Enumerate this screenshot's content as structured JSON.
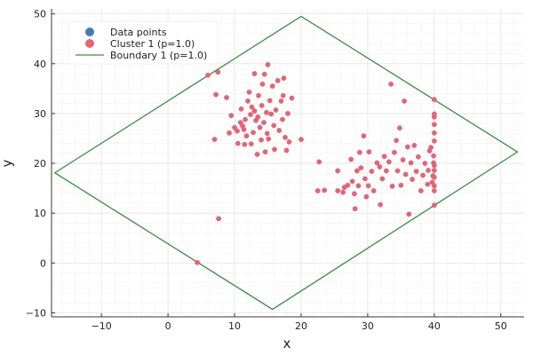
{
  "chart_data": {
    "type": "scatter",
    "xlabel": "x",
    "ylabel": "y",
    "xlim": [
      -17.5,
      53.5
    ],
    "ylim": [
      -10.8,
      51
    ],
    "xticks": [
      -10,
      0,
      10,
      20,
      30,
      40,
      50
    ],
    "yticks": [
      -10,
      0,
      10,
      20,
      30,
      40,
      50
    ],
    "grid": true,
    "legend_position": "top-left",
    "legend": [
      {
        "label": "Data points",
        "kind": "marker",
        "color": "#4a78b0"
      },
      {
        "label": "Cluster 1 (p=1.0)",
        "kind": "marker",
        "color": "#ea6275"
      },
      {
        "label": "Boundary 1 (p=1.0)",
        "kind": "line",
        "color": "#3a9040"
      }
    ],
    "boundary": {
      "name": "Boundary 1 (p=1.0)",
      "color": "#3a9040",
      "polygon": [
        [
          20,
          49.5
        ],
        [
          52.5,
          22.3
        ],
        [
          15.7,
          -9.3
        ],
        [
          -17,
          18.1
        ],
        [
          20,
          49.5
        ]
      ]
    },
    "series": [
      {
        "name": "Cluster 1 (p=1.0)",
        "color": "#ea6275",
        "points": [
          [
            6,
            37.7
          ],
          [
            7.5,
            38.3
          ],
          [
            7.2,
            33.8
          ],
          [
            7,
            24.8
          ],
          [
            7.6,
            8.9
          ],
          [
            4.4,
            0.1
          ],
          [
            8.8,
            33.2
          ],
          [
            9.5,
            29.6
          ],
          [
            10,
            27.2
          ],
          [
            10.4,
            26.5
          ],
          [
            10.5,
            24
          ],
          [
            10.9,
            28.2
          ],
          [
            11,
            30.9
          ],
          [
            11.2,
            27.5
          ],
          [
            11.4,
            26.8
          ],
          [
            11.6,
            28.8
          ],
          [
            11.8,
            25.5
          ],
          [
            12,
            32.5
          ],
          [
            12.2,
            34.3
          ],
          [
            12.4,
            29.8
          ],
          [
            12.5,
            23.9
          ],
          [
            12.6,
            31.3
          ],
          [
            12.8,
            26.2
          ],
          [
            13,
            30.5
          ],
          [
            13,
            38
          ],
          [
            13.2,
            28.6
          ],
          [
            13.4,
            21.8
          ],
          [
            13.5,
            29.3
          ],
          [
            13.6,
            33.6
          ],
          [
            13.8,
            27.2
          ],
          [
            14,
            24.7
          ],
          [
            14.1,
            31.6
          ],
          [
            14.2,
            35.9
          ],
          [
            14.4,
            28.2
          ],
          [
            14.5,
            37.9
          ],
          [
            14.6,
            22.3
          ],
          [
            14.8,
            30.2
          ],
          [
            14.9,
            26
          ],
          [
            15,
            39.8
          ],
          [
            15.1,
            24.9
          ],
          [
            15.3,
            32.6
          ],
          [
            15.5,
            29.9
          ],
          [
            15.7,
            35.5
          ],
          [
            15.9,
            27.6
          ],
          [
            16,
            22.8
          ],
          [
            16.2,
            30.7
          ],
          [
            16.5,
            36.6
          ],
          [
            16.7,
            26.6
          ],
          [
            17,
            32.5
          ],
          [
            17.2,
            28.8
          ],
          [
            17.4,
            37.1
          ],
          [
            17.6,
            25.2
          ],
          [
            17.8,
            22.6
          ],
          [
            18,
            30
          ],
          [
            18.2,
            24.3
          ],
          [
            18.6,
            33.1
          ],
          [
            20,
            24.8
          ],
          [
            9.2,
            26.1
          ],
          [
            11.5,
            23.8
          ],
          [
            17.3,
            33.6
          ],
          [
            22.7,
            20.3
          ],
          [
            22.5,
            14.5
          ],
          [
            23.5,
            14.6
          ],
          [
            25.5,
            18.5
          ],
          [
            25.5,
            14.5
          ],
          [
            26.3,
            14.2
          ],
          [
            26.5,
            15.2
          ],
          [
            27,
            15.6
          ],
          [
            27.5,
            20.8
          ],
          [
            27.7,
            16.4
          ],
          [
            28,
            13.9
          ],
          [
            28.1,
            10.9
          ],
          [
            28.4,
            18.5
          ],
          [
            28.6,
            15.5
          ],
          [
            29,
            19.1
          ],
          [
            29.4,
            25.5
          ],
          [
            29.6,
            16.9
          ],
          [
            29.8,
            13.3
          ],
          [
            30.2,
            22.3
          ],
          [
            30.6,
            18.4
          ],
          [
            30.9,
            14.5
          ],
          [
            31.4,
            20.1
          ],
          [
            31.8,
            19.3
          ],
          [
            31.9,
            11.7
          ],
          [
            32.2,
            16.9
          ],
          [
            32.5,
            21.4
          ],
          [
            32.8,
            18.5
          ],
          [
            33.2,
            20.3
          ],
          [
            33.5,
            35.9
          ],
          [
            33.7,
            15.4
          ],
          [
            34,
            22.2
          ],
          [
            34.3,
            24.6
          ],
          [
            34.5,
            18.5
          ],
          [
            34.8,
            27.1
          ],
          [
            35,
            15.6
          ],
          [
            35.3,
            20.7
          ],
          [
            35.5,
            32.5
          ],
          [
            35.7,
            17.8
          ],
          [
            36,
            23.3
          ],
          [
            36.2,
            9.8
          ],
          [
            36.5,
            20.1
          ],
          [
            36.7,
            16.8
          ],
          [
            37,
            23.6
          ],
          [
            37.3,
            18.4
          ],
          [
            37.6,
            21.3
          ],
          [
            38,
            14.5
          ],
          [
            38.3,
            17.6
          ],
          [
            38.6,
            20
          ],
          [
            39,
            15.8
          ],
          [
            39.1,
            18.6
          ],
          [
            39.3,
            22.5
          ],
          [
            39.5,
            23.2
          ],
          [
            39.7,
            16.2
          ],
          [
            39.8,
            17.5
          ],
          [
            39.9,
            20.1
          ],
          [
            39.9,
            21.5
          ],
          [
            40,
            14.5
          ],
          [
            40,
            15.5
          ],
          [
            40,
            17.2
          ],
          [
            40,
            18.6
          ],
          [
            40,
            19.6
          ],
          [
            40,
            24.5
          ],
          [
            40,
            26.1
          ],
          [
            40,
            27.8
          ],
          [
            40,
            29.3
          ],
          [
            40,
            29.9
          ],
          [
            40,
            32.8
          ],
          [
            40,
            11.6
          ],
          [
            30.1,
            15.5
          ],
          [
            28.8,
            22.2
          ]
        ]
      }
    ]
  }
}
